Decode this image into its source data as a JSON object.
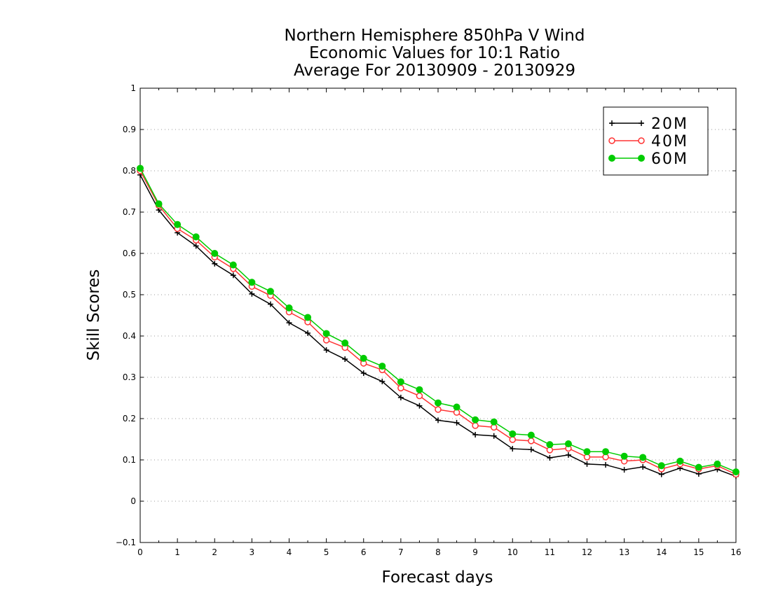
{
  "chart_data": {
    "type": "line",
    "title": [
      "Northern Hemisphere 850hPa V Wind",
      "Economic Values for 10:1 Ratio",
      "Average For 20130909 - 20130929"
    ],
    "xlabel": "Forecast days",
    "ylabel": "Skill Scores",
    "xlim": [
      0,
      16
    ],
    "ylim": [
      -0.1,
      1
    ],
    "xticks": [
      0,
      1,
      2,
      3,
      4,
      5,
      6,
      7,
      8,
      9,
      10,
      11,
      12,
      13,
      14,
      15,
      16
    ],
    "xtick_labels": [
      "0",
      "1",
      "2",
      "3",
      "4",
      "5",
      "6",
      "7",
      "8",
      "9",
      "10",
      "11",
      "12",
      "13",
      "14",
      "15",
      "16"
    ],
    "yticks": [
      -0.1,
      0,
      0.1,
      0.2,
      0.3,
      0.4,
      0.5,
      0.6,
      0.7,
      0.8,
      0.9,
      1
    ],
    "ytick_labels": [
      "−0.1",
      "0",
      "0.1",
      "0.2",
      "0.3",
      "0.4",
      "0.5",
      "0.6",
      "0.7",
      "0.8",
      "0.9",
      "1"
    ],
    "grid": "horizontal-dotted",
    "legend_position": "top-right",
    "x": [
      0,
      0.5,
      1,
      1.5,
      2,
      2.5,
      3,
      3.5,
      4,
      4.5,
      5,
      5.5,
      6,
      6.5,
      7,
      7.5,
      8,
      8.5,
      9,
      9.5,
      10,
      10.5,
      11,
      11.5,
      12,
      12.5,
      13,
      13.5,
      14,
      14.5,
      15,
      15.5,
      16
    ],
    "series": [
      {
        "name": "20M",
        "color": "#000000",
        "marker": "plus",
        "values": [
          0.79,
          0.705,
          0.65,
          0.618,
          0.575,
          0.547,
          0.502,
          0.477,
          0.432,
          0.407,
          0.366,
          0.344,
          0.31,
          0.29,
          0.251,
          0.231,
          0.196,
          0.19,
          0.161,
          0.158,
          0.127,
          0.125,
          0.105,
          0.112,
          0.09,
          0.088,
          0.076,
          0.083,
          0.065,
          0.08,
          0.066,
          0.077,
          0.06
        ]
      },
      {
        "name": "40M",
        "color": "#ff3333",
        "marker": "open-circle",
        "values": [
          0.8,
          0.716,
          0.66,
          0.632,
          0.591,
          0.563,
          0.52,
          0.498,
          0.458,
          0.434,
          0.39,
          0.372,
          0.334,
          0.318,
          0.274,
          0.255,
          0.222,
          0.215,
          0.183,
          0.179,
          0.149,
          0.146,
          0.124,
          0.128,
          0.107,
          0.107,
          0.097,
          0.1,
          0.078,
          0.09,
          0.078,
          0.086,
          0.065
        ]
      },
      {
        "name": "60M",
        "color": "#00cc00",
        "marker": "filled-circle",
        "values": [
          0.806,
          0.72,
          0.67,
          0.64,
          0.6,
          0.572,
          0.53,
          0.508,
          0.468,
          0.445,
          0.406,
          0.383,
          0.346,
          0.327,
          0.289,
          0.27,
          0.238,
          0.228,
          0.197,
          0.192,
          0.163,
          0.16,
          0.137,
          0.139,
          0.12,
          0.12,
          0.109,
          0.106,
          0.086,
          0.097,
          0.082,
          0.09,
          0.071
        ]
      }
    ]
  }
}
